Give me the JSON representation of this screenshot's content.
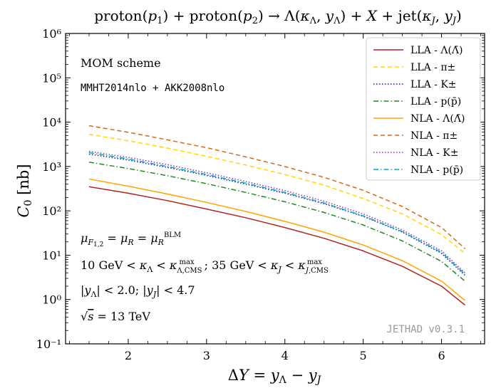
{
  "chart_data": {
    "type": "line",
    "title": "proton(p₁) + proton(p₂) → Λ(κ_Λ, y_Λ) + X + jet(κ_J, y_J)",
    "xlabel": "ΔY = y_Λ − y_J",
    "ylabel": "C₀ [nb]",
    "xlim": [
      1.2,
      6.55
    ],
    "ylim": [
      0.1,
      1000000
    ],
    "yscale": "log",
    "x_ticks": [
      2,
      3,
      4,
      5,
      6
    ],
    "y_tick_labels": [
      "10⁻¹",
      "10⁰",
      "10¹",
      "10²",
      "10³",
      "10⁴",
      "10⁵",
      "10⁶"
    ],
    "y_tick_values": [
      0.1,
      1,
      10,
      100,
      1000,
      10000,
      100000,
      1000000
    ],
    "x": [
      1.5,
      2.0,
      2.5,
      3.0,
      3.5,
      4.0,
      4.5,
      5.0,
      5.5,
      6.0,
      6.3
    ],
    "series": [
      {
        "name": "LLA - Λ(Λ̄)",
        "color": "#b22222",
        "dash": "solid",
        "values": [
          350,
          250,
          170,
          110,
          70,
          42,
          24,
          12.5,
          5.6,
          2.0,
          0.75
        ]
      },
      {
        "name": "LLA - π±",
        "color": "#ffd700",
        "dash": "dashed",
        "values": [
          5300,
          3800,
          2600,
          1700,
          1080,
          660,
          380,
          190,
          85,
          29,
          11
        ]
      },
      {
        "name": "LLA - K±",
        "color": "#1e1eb4",
        "dash": "dotted",
        "values": [
          1900,
          1400,
          950,
          630,
          400,
          250,
          145,
          75,
          33,
          11,
          3.5
        ]
      },
      {
        "name": "LLA - p(p̄)",
        "color": "#228b22",
        "dash": "dashdot",
        "values": [
          1250,
          900,
          620,
          410,
          260,
          160,
          92,
          48,
          21,
          7.2,
          2.6
        ]
      },
      {
        "name": "NLA - Λ(Λ̄)",
        "color": "#ffa500",
        "dash": "solid",
        "values": [
          520,
          360,
          240,
          155,
          97,
          58,
          33,
          17,
          7.5,
          2.6,
          0.95
        ]
      },
      {
        "name": "NLA - π±",
        "color": "#d2691e",
        "dash": "dashed",
        "values": [
          8300,
          5900,
          4000,
          2650,
          1650,
          1000,
          570,
          290,
          125,
          42,
          14
        ]
      },
      {
        "name": "NLA - K±",
        "color": "#8b2fc9",
        "dash": "dotted",
        "values": [
          2200,
          1600,
          1100,
          720,
          460,
          285,
          165,
          85,
          37,
          12.5,
          4.0
        ]
      },
      {
        "name": "NLA - p(p̄)",
        "color": "#00acc1",
        "dash": "dashdot",
        "values": [
          2050,
          1480,
          1000,
          660,
          420,
          260,
          150,
          77,
          34,
          11.5,
          3.7
        ]
      }
    ],
    "legend_position": "top-right",
    "annotations": {
      "scheme": "MOM scheme",
      "pdf": "MMHT2014nlo + AKK2008nlo",
      "scale": "μ_F₁,₂ = μ_R = μ_R^BLM",
      "kappa": "10 GeV < κ_Λ < κ_Λ,CMS^max;  35 GeV < κ_J < κ_J,CMS^max",
      "rapidity": "|y_Λ| < 2.0;   |y_J| < 4.7",
      "energy": "√s = 13 TeV",
      "watermark": "JETHAD v0.3.1"
    }
  }
}
